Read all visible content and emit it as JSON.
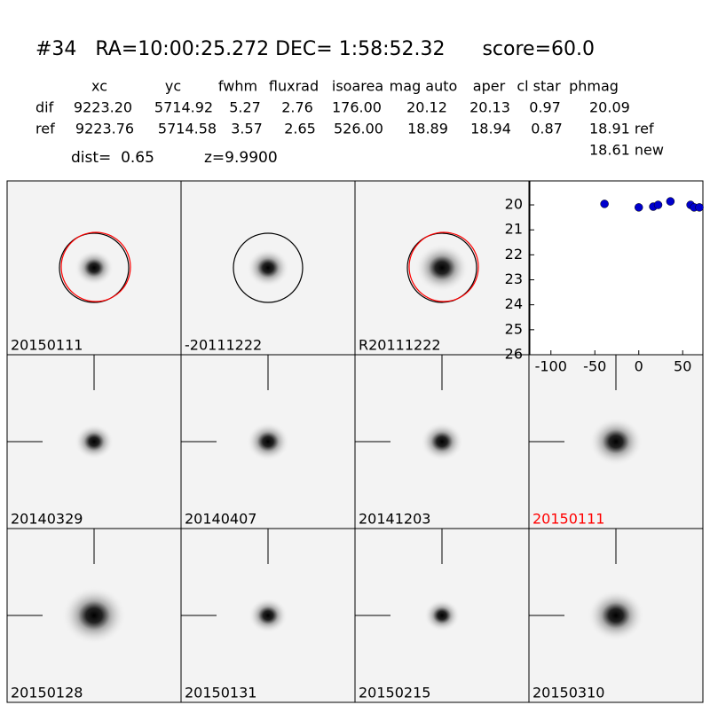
{
  "header": {
    "title": "#34   RA=10:00:25.272 DEC= 1:58:52.32      score=60.0",
    "dist": "dist=  0.65",
    "z": "z=9.9900"
  },
  "table": {
    "columns": [
      "xc",
      "yc",
      "fwhm",
      "fluxrad",
      "isoarea",
      "mag auto",
      "aper",
      "cl star",
      "phmag"
    ],
    "rows": [
      [
        "dif",
        "9223.20",
        "5714.92",
        "5.27",
        "2.76",
        "176.00",
        "20.12",
        "20.13",
        "0.97",
        "20.09"
      ],
      [
        "ref",
        "9223.76",
        "5714.58",
        "3.57",
        "2.65",
        "526.00",
        "18.89",
        "18.94",
        "0.87",
        "18.91 ref"
      ]
    ],
    "extra": "18.61 new"
  },
  "panels": [
    {
      "label": "20150111"
    },
    {
      "label": "-20111222"
    },
    {
      "label": "R20111222"
    },
    {
      "label": "20140329"
    },
    {
      "label": "20140407"
    },
    {
      "label": "20141203"
    },
    {
      "label": "20150111",
      "label_color": "red"
    },
    {
      "label": "20150128"
    },
    {
      "label": "20150131"
    },
    {
      "label": "20150215"
    },
    {
      "label": "20150310"
    }
  ],
  "chart_data": {
    "type": "scatter",
    "color": "#0000cc",
    "x": [
      -39,
      0,
      16.5,
      22,
      36,
      59,
      63,
      69
    ],
    "values": [
      19.96,
      20.1,
      20.07,
      20.0,
      19.86,
      20.0,
      20.1,
      20.1
    ],
    "xlim": [
      -124,
      73
    ],
    "xticks": [
      -100,
      -50,
      0,
      50
    ],
    "ylim": [
      19.04,
      26
    ],
    "yticks": [
      20,
      21,
      22,
      23,
      24,
      25,
      26
    ],
    "y_inverted": true
  }
}
